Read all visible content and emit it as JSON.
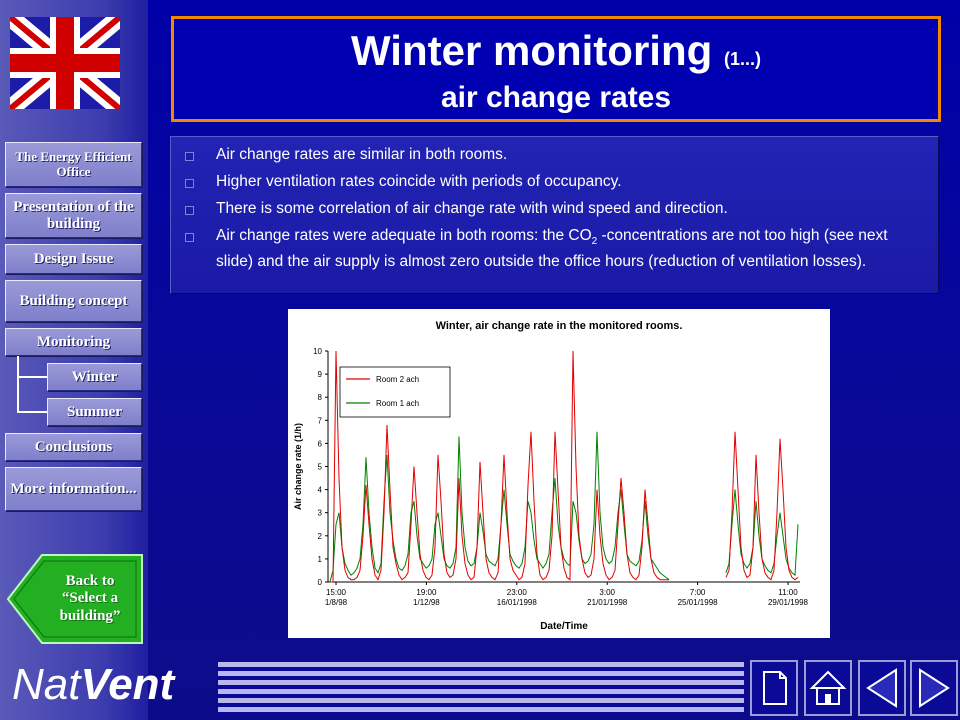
{
  "brand": {
    "nat": "Nat",
    "vent": "Vent"
  },
  "title": {
    "main": "Winter monitoring",
    "small": "(1...)",
    "sub": "air change rates"
  },
  "nav": {
    "energy_office": "The Energy Efficient Office",
    "presentation": "Presentation of the building",
    "design_issue": "Design Issue",
    "building_concept": "Building concept",
    "monitoring": "Monitoring",
    "winter": "Winter",
    "summer": "Summer",
    "conclusions": "Conclusions",
    "more_info": "More information...",
    "back": "Back to “Select a building”"
  },
  "bullets": [
    "Air change rates are similar in both rooms.",
    "Higher ventilation rates coincide with periods of occupancy.",
    "There is some correlation of air change rate with wind speed and direction.",
    {
      "pre": "Air change rates were adequate in both rooms: the CO",
      "sub": "2",
      "post": " -concentrations are not too high (see next slide) and the air supply is almost zero outside the office hours (reduction of ventilation losses)."
    }
  ],
  "colors": {
    "room2": "#e00000",
    "room1": "#008000",
    "title_border": "#f08800",
    "background": "#0a0a96"
  },
  "icons": [
    "uk-flag-icon",
    "back-arrow-icon",
    "blank-page-icon",
    "home-icon",
    "previous-icon",
    "next-icon"
  ],
  "chart_data": {
    "type": "line",
    "title": "Winter, air change rate in the monitored rooms.",
    "xlabel": "Date/Time",
    "ylabel": "Air change rate (1/h)",
    "ylim": [
      0,
      10
    ],
    "yticks": [
      "0",
      "1",
      "2",
      "3",
      "4",
      "5",
      "6",
      "7",
      "8",
      "9",
      "10"
    ],
    "xticks": [
      {
        "time": "15:00",
        "date": "1/8/98"
      },
      {
        "time": "19:00",
        "date": "1/12/98"
      },
      {
        "time": "23:00",
        "date": "16/01/1998"
      },
      {
        "time": "3:00",
        "date": "21/01/1998"
      },
      {
        "time": "7:00",
        "date": "25/01/1998"
      },
      {
        "time": "11:00",
        "date": "29/01/1998"
      }
    ],
    "legend_position": "top-left",
    "series": [
      {
        "name": "Room 2 ach",
        "color": "#e00000",
        "values": [
          0,
          0,
          10,
          4.5,
          1.5,
          0.5,
          0.2,
          0.1,
          0.1,
          0.2,
          0.5,
          2.0,
          4.2,
          2.5,
          1.0,
          0.3,
          0.1,
          0.5,
          3.0,
          6.8,
          4.0,
          1.5,
          0.8,
          0.3,
          0.1,
          0.2,
          0.4,
          2.5,
          5.0,
          3.0,
          1.2,
          0.5,
          0.2,
          0.1,
          0.3,
          1.5,
          5.5,
          3.5,
          1.2,
          0.4,
          0.2,
          0.3,
          1.0,
          4.5,
          2.0,
          0.8,
          0.3,
          0.1,
          0.2,
          1.5,
          5.2,
          3.0,
          1.0,
          0.4,
          0.2,
          0.1,
          0.4,
          2.5,
          5.5,
          3.0,
          1.0,
          0.5,
          0.3,
          0.1,
          0.2,
          0.8,
          4.2,
          6.5,
          3.5,
          1.2,
          0.3,
          0.1,
          0.2,
          0.5,
          2.0,
          6.5,
          4.0,
          1.5,
          0.6,
          0.2,
          0.1,
          10,
          5.0,
          2.0,
          1.0,
          0.4,
          0.2,
          0.3,
          1.0,
          4.0,
          2.0,
          0.8,
          0.3,
          0.1,
          0.2,
          0.5,
          2.5,
          4.5,
          3.0,
          1.2,
          0.4,
          0.2,
          0.1,
          0.3,
          1.5,
          4.0,
          2.5,
          1.0,
          0.4,
          0.2,
          0.1,
          0.1,
          0.1,
          0.1,
          null,
          null,
          null,
          null,
          null,
          null,
          null,
          null,
          null,
          null,
          null,
          null,
          null,
          null,
          null,
          null,
          null,
          null,
          0.2,
          0.5,
          3.0,
          6.5,
          4.0,
          1.5,
          0.5,
          0.2,
          0.3,
          1.5,
          5.5,
          3.0,
          1.0,
          0.4,
          0.2,
          0.1,
          0.5,
          3.0,
          6.2,
          4.0,
          1.5,
          0.5,
          0.2,
          0.1,
          0.2
        ]
      },
      {
        "name": "Room 1 ach",
        "color": "#008000",
        "values": [
          0,
          0.5,
          2.5,
          3.0,
          1.5,
          0.8,
          0.5,
          0.3,
          0.4,
          0.6,
          1.0,
          2.5,
          5.4,
          3.0,
          1.5,
          0.6,
          0.4,
          0.8,
          3.5,
          5.5,
          3.0,
          1.8,
          1.0,
          0.6,
          0.5,
          0.7,
          1.2,
          3.0,
          3.5,
          2.0,
          1.0,
          0.8,
          0.6,
          0.7,
          1.0,
          2.5,
          3.0,
          2.0,
          1.0,
          0.7,
          0.6,
          0.8,
          1.5,
          6.3,
          3.0,
          1.5,
          0.9,
          0.7,
          0.8,
          1.5,
          3.0,
          2.2,
          1.2,
          0.9,
          0.8,
          0.7,
          1.0,
          2.5,
          4.0,
          2.5,
          1.2,
          0.9,
          0.7,
          0.6,
          0.8,
          1.5,
          3.5,
          3.0,
          1.8,
          1.0,
          0.8,
          0.6,
          0.8,
          1.2,
          3.0,
          4.5,
          2.5,
          1.5,
          1.0,
          0.8,
          0.7,
          3.5,
          3.0,
          1.8,
          1.0,
          0.8,
          0.9,
          1.2,
          2.5,
          6.5,
          3.0,
          1.5,
          1.0,
          0.8,
          0.9,
          1.5,
          3.0,
          4.0,
          2.5,
          1.2,
          0.9,
          0.8,
          0.7,
          0.9,
          1.8,
          3.5,
          2.0,
          1.0,
          0.8,
          0.6,
          0.4,
          0.3,
          0.2,
          0.1,
          null,
          null,
          null,
          null,
          null,
          null,
          null,
          null,
          null,
          null,
          null,
          null,
          null,
          null,
          null,
          null,
          null,
          null,
          0.4,
          0.8,
          2.5,
          4.0,
          2.5,
          1.2,
          0.8,
          0.6,
          0.8,
          1.5,
          3.5,
          2.0,
          1.0,
          0.7,
          0.5,
          0.4,
          0.8,
          2.0,
          3.0,
          2.0,
          1.0,
          0.6,
          0.4,
          0.3,
          2.5
        ]
      }
    ]
  }
}
